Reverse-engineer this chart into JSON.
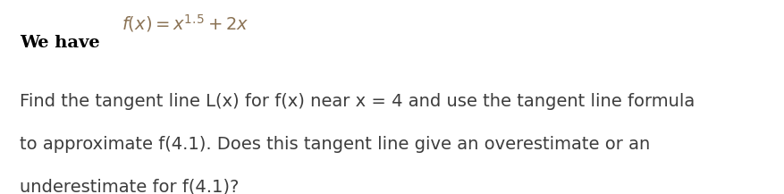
{
  "background_color": "#ffffff",
  "formula_text": "$f(x) = x^{1.5} + 2x$",
  "formula_color": "#8B7355",
  "we_have_text": "We have",
  "we_have_color": "#000000",
  "we_have_fontsize": 14,
  "formula_fontsize": 14,
  "body_text_line1": "Find the tangent line L(x) for f(x) near x = 4 and use the tangent line formula",
  "body_text_line2": "to approximate f(4.1). Does this tangent line give an overestimate or an",
  "body_text_line3": "underestimate for f(4.1)?",
  "body_color": "#3d3d3d",
  "body_fontsize": 14,
  "figsize": [
    8.77,
    2.17
  ],
  "dpi": 100
}
